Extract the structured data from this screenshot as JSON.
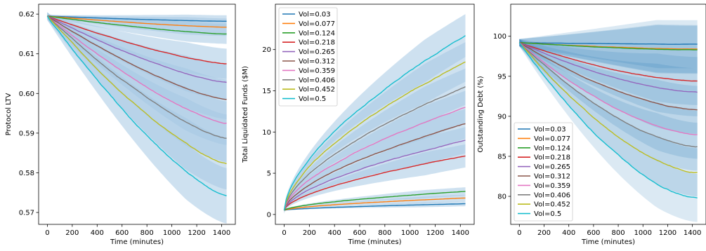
{
  "chart_data": [
    {
      "type": "line",
      "xlabel": "Time (minutes)",
      "ylabel": "Protocol LTV",
      "xlim": [
        -70,
        1510
      ],
      "ylim": [
        0.567,
        0.6225
      ],
      "xticks": [
        0,
        200,
        400,
        600,
        800,
        1000,
        1200,
        1400
      ],
      "yticks": [
        0.57,
        0.58,
        0.59,
        0.6,
        0.61,
        0.62
      ],
      "ytick_labels": [
        "0.57",
        "0.58",
        "0.59",
        "0.60",
        "0.61",
        "0.62"
      ],
      "band_color": "#a6c8e4",
      "x": [
        0,
        1440
      ],
      "series": [
        {
          "name": "Vol=0.03",
          "color": "#1f77b4",
          "values": [
            0.6195,
            0.6182
          ],
          "band": 0.0015
        },
        {
          "name": "Vol=0.077",
          "color": "#ff7f0e",
          "values": [
            0.6195,
            0.6167
          ],
          "band": 0.0022
        },
        {
          "name": "Vol=0.124",
          "color": "#2ca02c",
          "values": [
            0.6195,
            0.615
          ],
          "band": 0.0025
        },
        {
          "name": "Vol=0.218",
          "color": "#d62728",
          "values": [
            0.6195,
            0.6075
          ],
          "band": 0.0038
        },
        {
          "name": "Vol=0.265",
          "color": "#9467bd",
          "values": [
            0.6195,
            0.6028
          ],
          "band": 0.0045
        },
        {
          "name": "Vol=0.312",
          "color": "#8c564b",
          "values": [
            0.6195,
            0.5985
          ],
          "band": 0.005
        },
        {
          "name": "Vol=0.359",
          "color": "#e377c2",
          "values": [
            0.6195,
            0.5925
          ],
          "band": 0.0055
        },
        {
          "name": "Vol=0.406",
          "color": "#7f7f7f",
          "values": [
            0.6195,
            0.5887
          ],
          "band": 0.006
        },
        {
          "name": "Vol=0.452",
          "color": "#bcbd22",
          "values": [
            0.6195,
            0.5823
          ],
          "band": 0.0065
        },
        {
          "name": "Vol=0.5",
          "color": "#17becf",
          "values": [
            0.6195,
            0.5742
          ],
          "band": 0.007
        }
      ],
      "legend": null
    },
    {
      "type": "line",
      "xlabel": "Time (minutes)",
      "ylabel": "Total Liquidated Funds ($M)",
      "xlim": [
        -70,
        1510
      ],
      "ylim": [
        -1.2,
        25.5
      ],
      "xticks": [
        0,
        200,
        400,
        600,
        800,
        1000,
        1200,
        1400
      ],
      "yticks": [
        0,
        5,
        10,
        15,
        20
      ],
      "ytick_labels": [
        "0",
        "5",
        "10",
        "15",
        "20"
      ],
      "band_color": "#a6c8e4",
      "x": [
        0,
        1440
      ],
      "series": [
        {
          "name": "Vol=0.03",
          "color": "#1f77b4",
          "values": [
            0.5,
            1.3
          ],
          "band": 0.3
        },
        {
          "name": "Vol=0.077",
          "color": "#ff7f0e",
          "values": [
            0.5,
            2.0
          ],
          "band": 0.4
        },
        {
          "name": "Vol=0.124",
          "color": "#2ca02c",
          "values": [
            0.5,
            2.8
          ],
          "band": 0.5
        },
        {
          "name": "Vol=0.218",
          "color": "#d62728",
          "values": [
            0.5,
            7.1
          ],
          "band": 1.4
        },
        {
          "name": "Vol=0.265",
          "color": "#9467bd",
          "values": [
            0.5,
            9.0
          ],
          "band": 1.6
        },
        {
          "name": "Vol=0.312",
          "color": "#8c564b",
          "values": [
            0.5,
            11.0
          ],
          "band": 1.8
        },
        {
          "name": "Vol=0.359",
          "color": "#e377c2",
          "values": [
            0.5,
            13.0
          ],
          "band": 2.0
        },
        {
          "name": "Vol=0.406",
          "color": "#7f7f7f",
          "values": [
            0.5,
            15.5
          ],
          "band": 2.2
        },
        {
          "name": "Vol=0.452",
          "color": "#bcbd22",
          "values": [
            0.5,
            18.5
          ],
          "band": 2.4
        },
        {
          "name": "Vol=0.5",
          "color": "#17becf",
          "values": [
            0.5,
            21.7
          ],
          "band": 2.6
        }
      ],
      "legend": "upper-left"
    },
    {
      "type": "line",
      "xlabel": "Time (minutes)",
      "ylabel": "Outstanding Debt (%)",
      "xlim": [
        -70,
        1510
      ],
      "ylim": [
        76.5,
        104.0
      ],
      "xticks": [
        0,
        200,
        400,
        600,
        800,
        1000,
        1200,
        1400
      ],
      "yticks": [
        80,
        85,
        90,
        95,
        100
      ],
      "ytick_labels": [
        "80",
        "85",
        "90",
        "95",
        "100"
      ],
      "band_color": "#1f77b4",
      "x": [
        0,
        1440
      ],
      "series": [
        {
          "name": "Vol=0.03",
          "color": "#1f77b4",
          "values": [
            99.2,
            99.0
          ],
          "band": 3.0
        },
        {
          "name": "Vol=0.077",
          "color": "#ff7f0e",
          "values": [
            99.2,
            98.4
          ],
          "band": 3.0
        },
        {
          "name": "Vol=0.124",
          "color": "#2ca02c",
          "values": [
            99.2,
            98.3
          ],
          "band": 3.0
        },
        {
          "name": "Vol=0.218",
          "color": "#d62728",
          "values": [
            99.2,
            94.4
          ],
          "band": 3.0
        },
        {
          "name": "Vol=0.265",
          "color": "#9467bd",
          "values": [
            99.2,
            93.0
          ],
          "band": 3.0
        },
        {
          "name": "Vol=0.312",
          "color": "#8c564b",
          "values": [
            99.2,
            90.8
          ],
          "band": 3.0
        },
        {
          "name": "Vol=0.359",
          "color": "#e377c2",
          "values": [
            99.2,
            87.7
          ],
          "band": 3.0
        },
        {
          "name": "Vol=0.406",
          "color": "#7f7f7f",
          "values": [
            99.2,
            86.2
          ],
          "band": 3.0
        },
        {
          "name": "Vol=0.452",
          "color": "#bcbd22",
          "values": [
            99.2,
            83.0
          ],
          "band": 3.0
        },
        {
          "name": "Vol=0.5",
          "color": "#17becf",
          "values": [
            99.2,
            79.8
          ],
          "band": 3.0
        }
      ],
      "legend": "lower-left"
    }
  ]
}
